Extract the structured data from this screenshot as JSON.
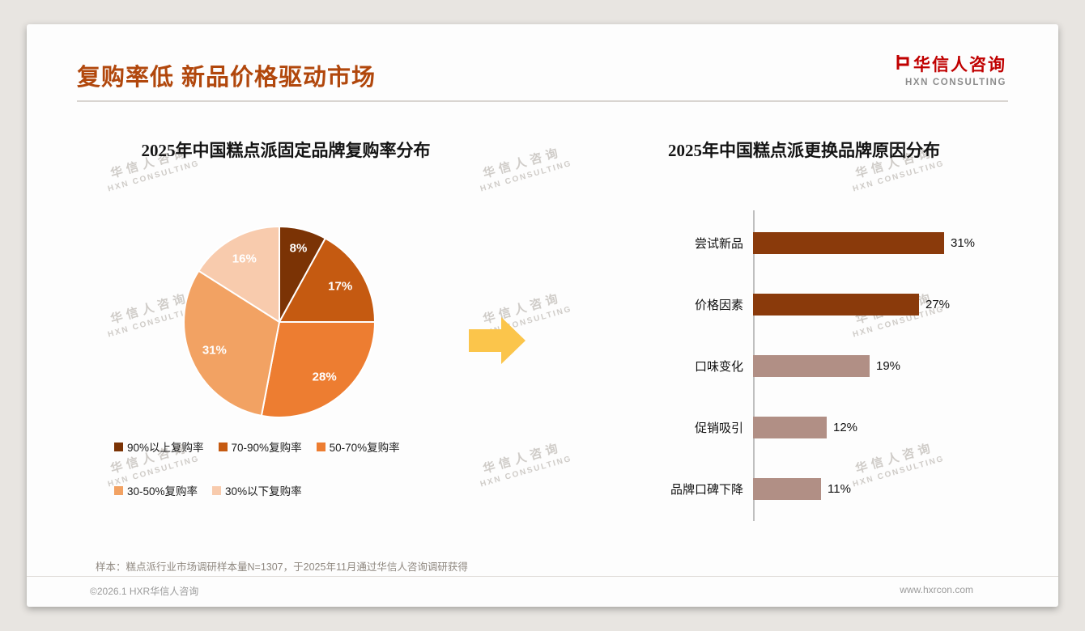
{
  "theme": {
    "title_color": "#B1470C",
    "logo_red": "#C00000",
    "arrow_color": "#FBC54B",
    "watermark_color": "#CBC7C3",
    "divider_color": "#D9D5D1",
    "axis_color": "#BFBFBF",
    "footer_text_color": "#9B9B9B"
  },
  "header": {
    "title": "复购率低 新品价格驱动市场",
    "logo": {
      "name": "华信人咨询",
      "sub": "HXN CONSULTING"
    }
  },
  "watermark": {
    "line1": "华信人咨询",
    "line2": "HXN CONSULTING"
  },
  "chart_data": [
    {
      "type": "pie",
      "title": "2025年中国糕点派固定品牌复购率分布",
      "labels": [
        "90%以上复购率",
        "70-90%复购率",
        "50-70%复购率",
        "30-50%复购率",
        "30%以下复购率"
      ],
      "values": [
        8,
        17,
        28,
        31,
        16
      ],
      "unit": "%",
      "colors": [
        "#7B3305",
        "#C55A11",
        "#ED7D31",
        "#F2A263",
        "#F8CBAD"
      ],
      "legend_position": "bottom",
      "start_angle_deg": -90,
      "direction": "clockwise"
    },
    {
      "type": "bar",
      "orientation": "horizontal",
      "title": "2025年中国糕点派更换品牌原因分布",
      "categories": [
        "尝试新品",
        "价格因素",
        "口味变化",
        "促销吸引",
        "品牌口碑下降"
      ],
      "values": [
        31,
        27,
        19,
        12,
        11
      ],
      "unit": "%",
      "colors": [
        "#8A3A0B",
        "#8A3A0B",
        "#B18F85",
        "#B18F85",
        "#B18F85"
      ],
      "xlim": [
        0,
        35
      ],
      "data_labels": [
        "31%",
        "27%",
        "19%",
        "12%",
        "11%"
      ]
    }
  ],
  "footnote": {
    "text": "样本：糕点派行业市场调研样本量N=1307，于2025年11月通过华信人咨询调研获得"
  },
  "footer": {
    "copyright": "©2026.1 HXR华信人咨询",
    "website": "www.hxrcon.com"
  }
}
